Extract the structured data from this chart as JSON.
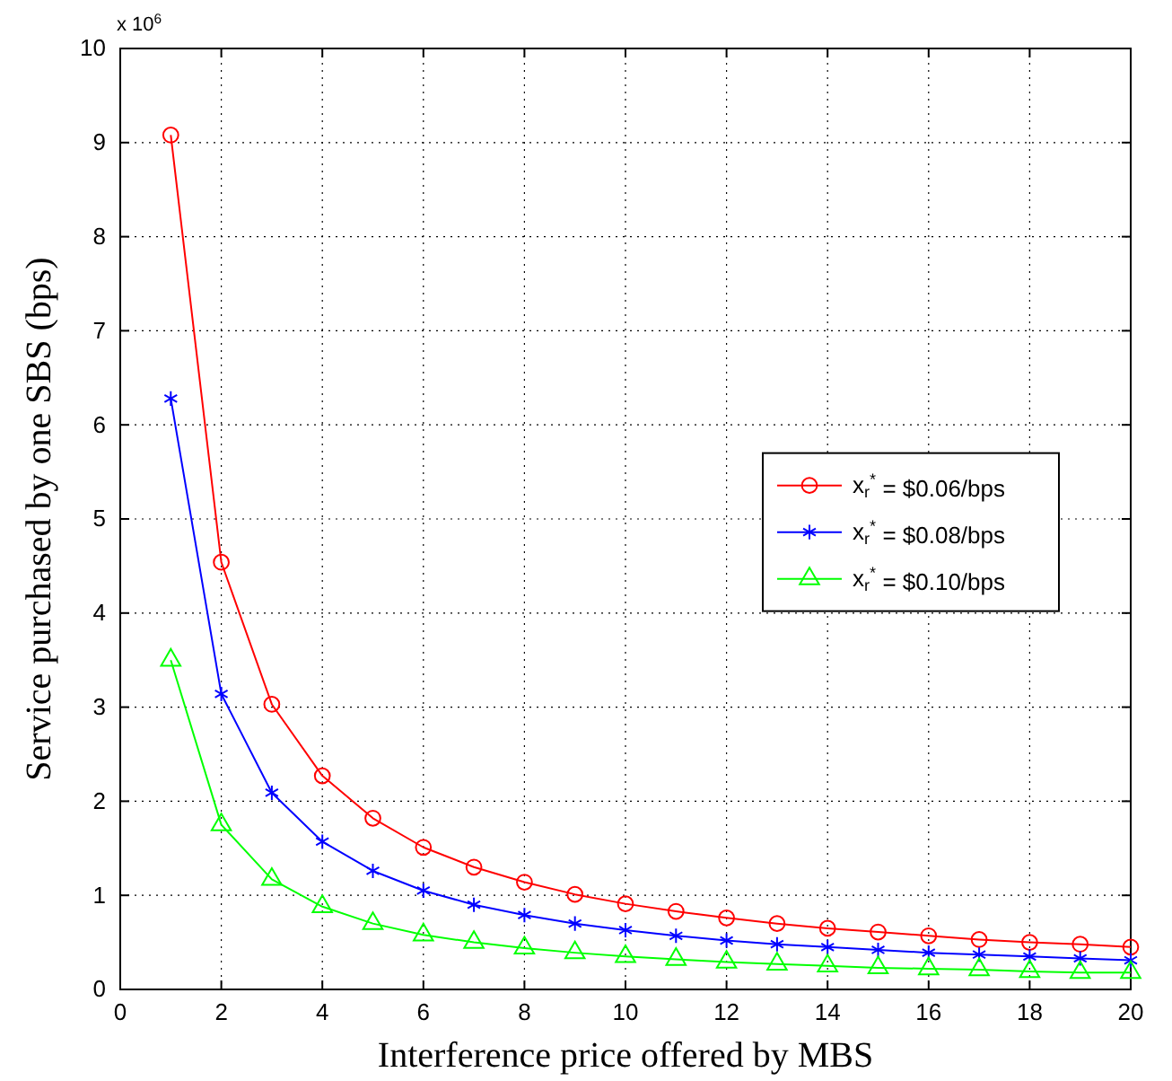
{
  "chart_data": {
    "type": "line",
    "xlabel": "Interference price offered by MBS",
    "ylabel": "Service purchased by one SBS (bps)",
    "annotations": [
      "x 10$^{6}$"
    ],
    "x": [
      1,
      2,
      3,
      4,
      5,
      6,
      7,
      8,
      9,
      10,
      11,
      12,
      13,
      14,
      15,
      16,
      17,
      18,
      19,
      20
    ],
    "xlim": [
      0,
      20
    ],
    "xticks": [
      0,
      2,
      4,
      6,
      8,
      10,
      12,
      14,
      16,
      18,
      20
    ],
    "ylim": [
      0,
      10
    ],
    "yticks": [
      0,
      1,
      2,
      3,
      4,
      5,
      6,
      7,
      8,
      9,
      10
    ],
    "grid": true,
    "legend": "right",
    "line_style": "solid",
    "series": [
      {
        "name": "x$_{r}$$^{*}$ = $0.06/bps",
        "color": "#ff0000",
        "marker": "circle",
        "values": [
          9.08,
          4.54,
          3.03,
          2.27,
          1.82,
          1.51,
          1.3,
          1.14,
          1.01,
          0.91,
          0.83,
          0.76,
          0.7,
          0.65,
          0.61,
          0.57,
          0.53,
          0.5,
          0.48,
          0.45
        ]
      },
      {
        "name": "x$_{r}$$^{*}$ = $0.08/bps",
        "color": "#0000ff",
        "marker": "cross",
        "values": [
          6.28,
          3.14,
          2.09,
          1.57,
          1.26,
          1.05,
          0.9,
          0.79,
          0.7,
          0.63,
          0.57,
          0.52,
          0.48,
          0.45,
          0.42,
          0.39,
          0.37,
          0.35,
          0.33,
          0.31
        ]
      },
      {
        "name": "x$_{r}$$^{*}$ = $0.10/bps",
        "color": "#00ff00",
        "marker": "triangle",
        "values": [
          3.5,
          1.75,
          1.17,
          0.88,
          0.7,
          0.58,
          0.5,
          0.44,
          0.39,
          0.35,
          0.32,
          0.29,
          0.27,
          0.25,
          0.23,
          0.22,
          0.21,
          0.19,
          0.18,
          0.18
        ]
      }
    ]
  }
}
